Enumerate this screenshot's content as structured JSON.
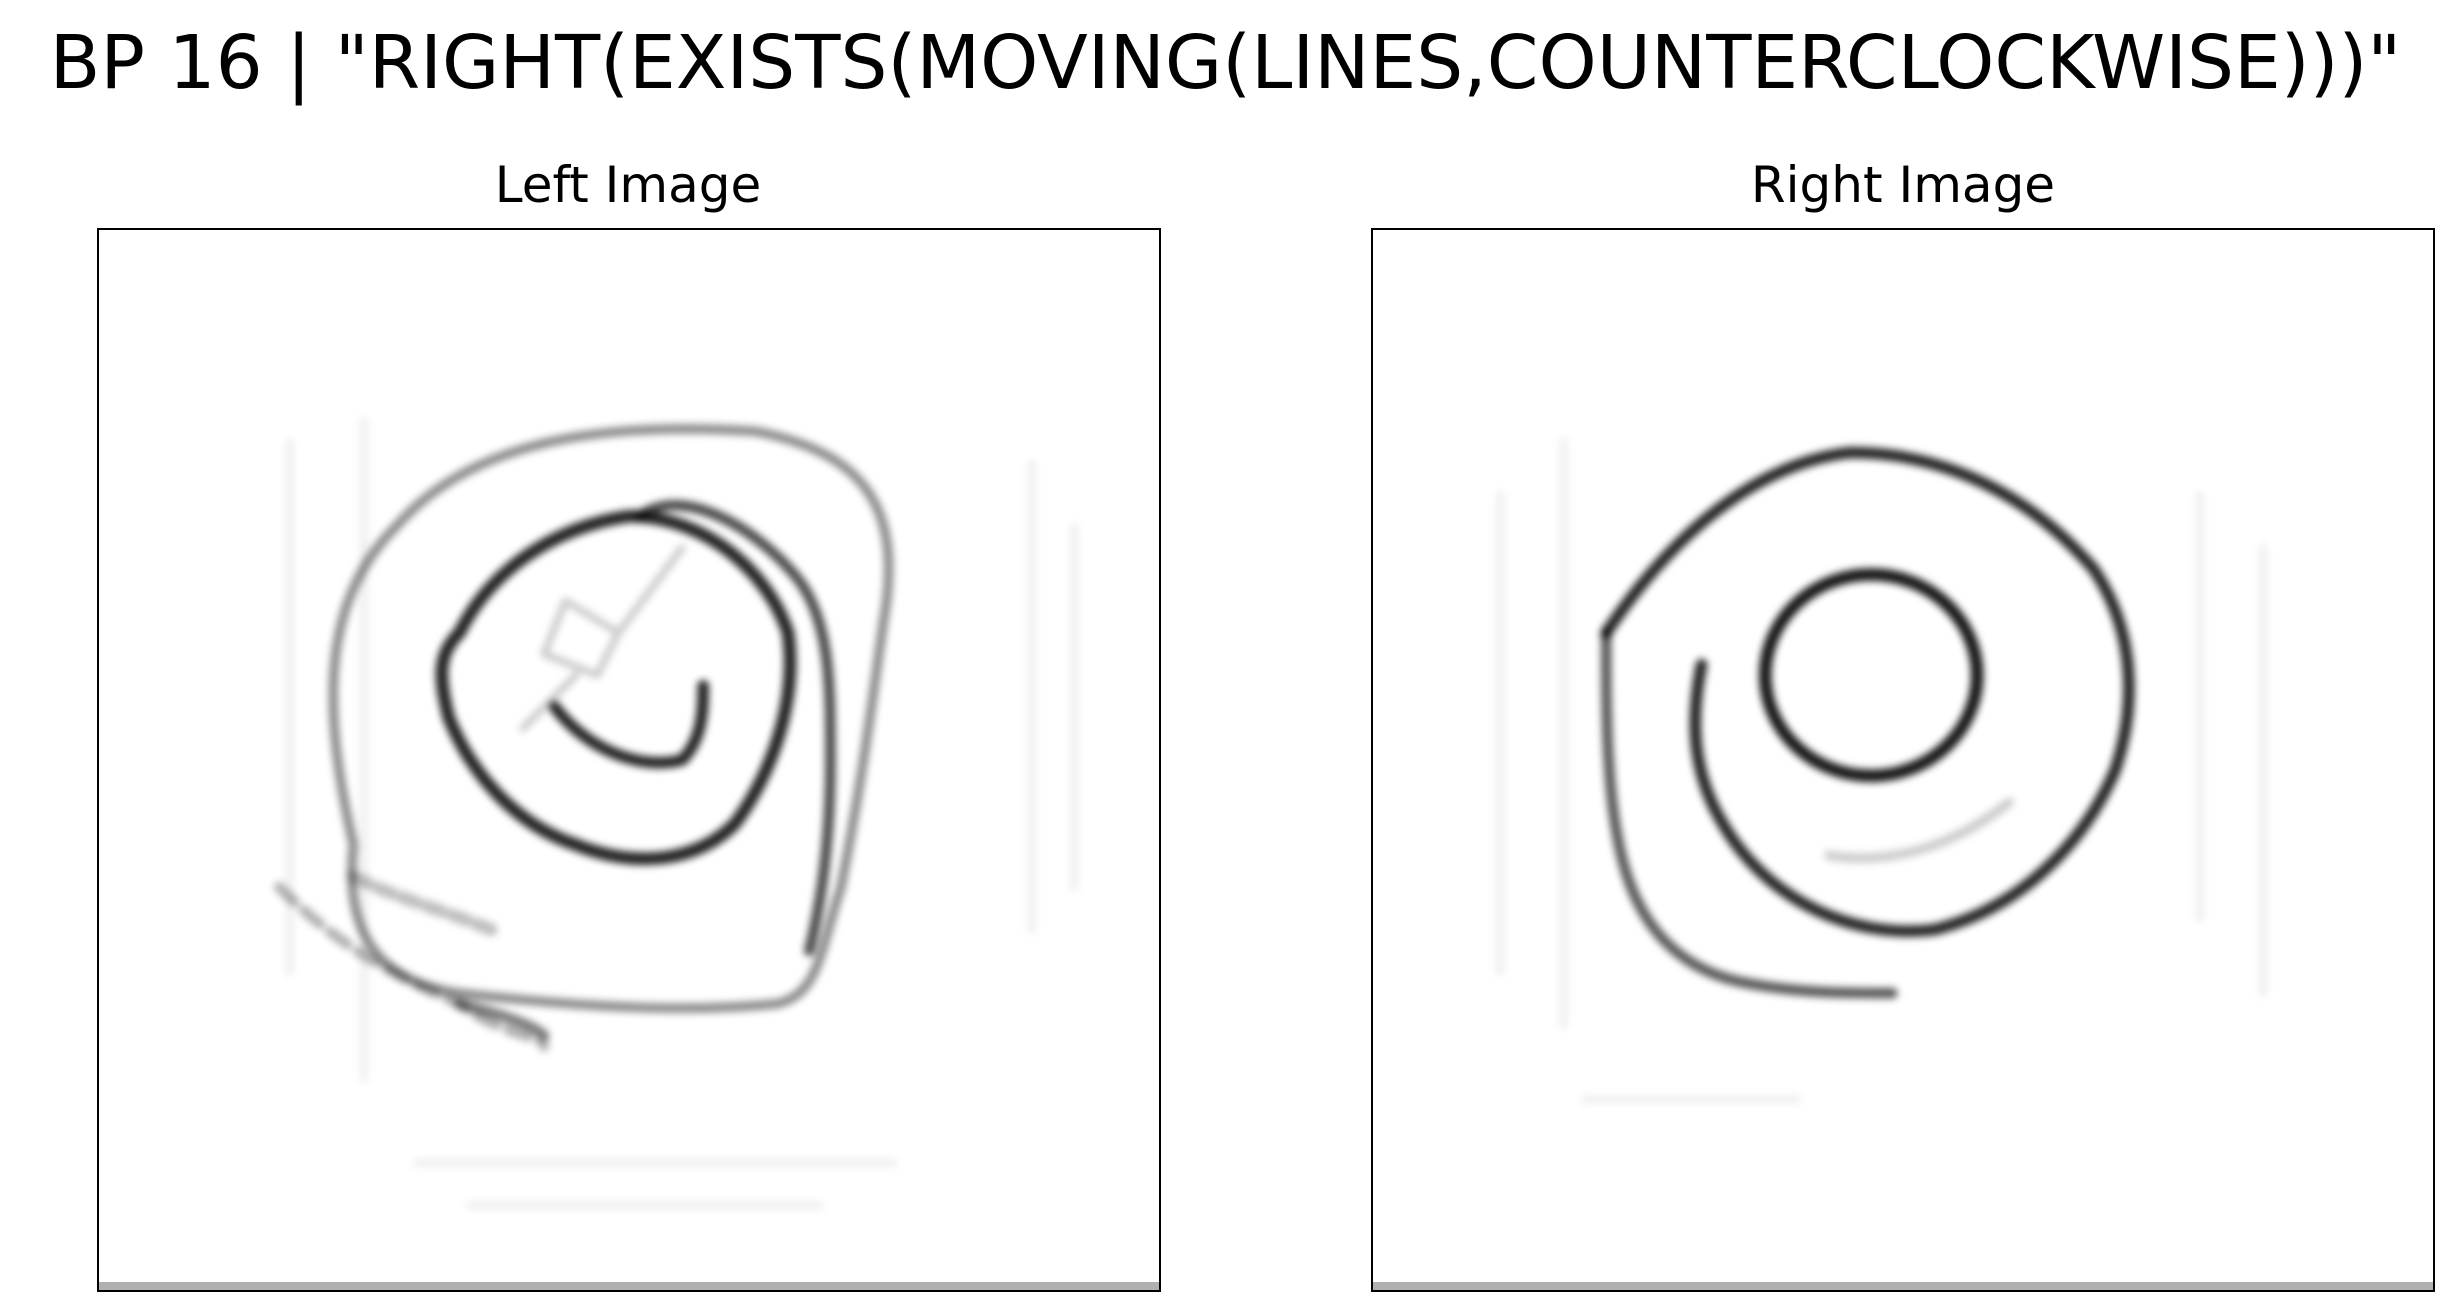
{
  "figure": {
    "title": "BP 16 | \"RIGHT(EXISTS(MOVING(LINES,COUNTERCLOCKWISE)))\""
  },
  "panels": {
    "left": {
      "title": "Left Image",
      "content": "hand-drawn counterclockwise spiral lines"
    },
    "right": {
      "title": "Right Image",
      "content": "hand-drawn concentric circle and spiral"
    }
  },
  "colors": {
    "ink": "#000000",
    "frame": "#000000",
    "background": "#ffffff",
    "strip": "#b0b0b0"
  }
}
